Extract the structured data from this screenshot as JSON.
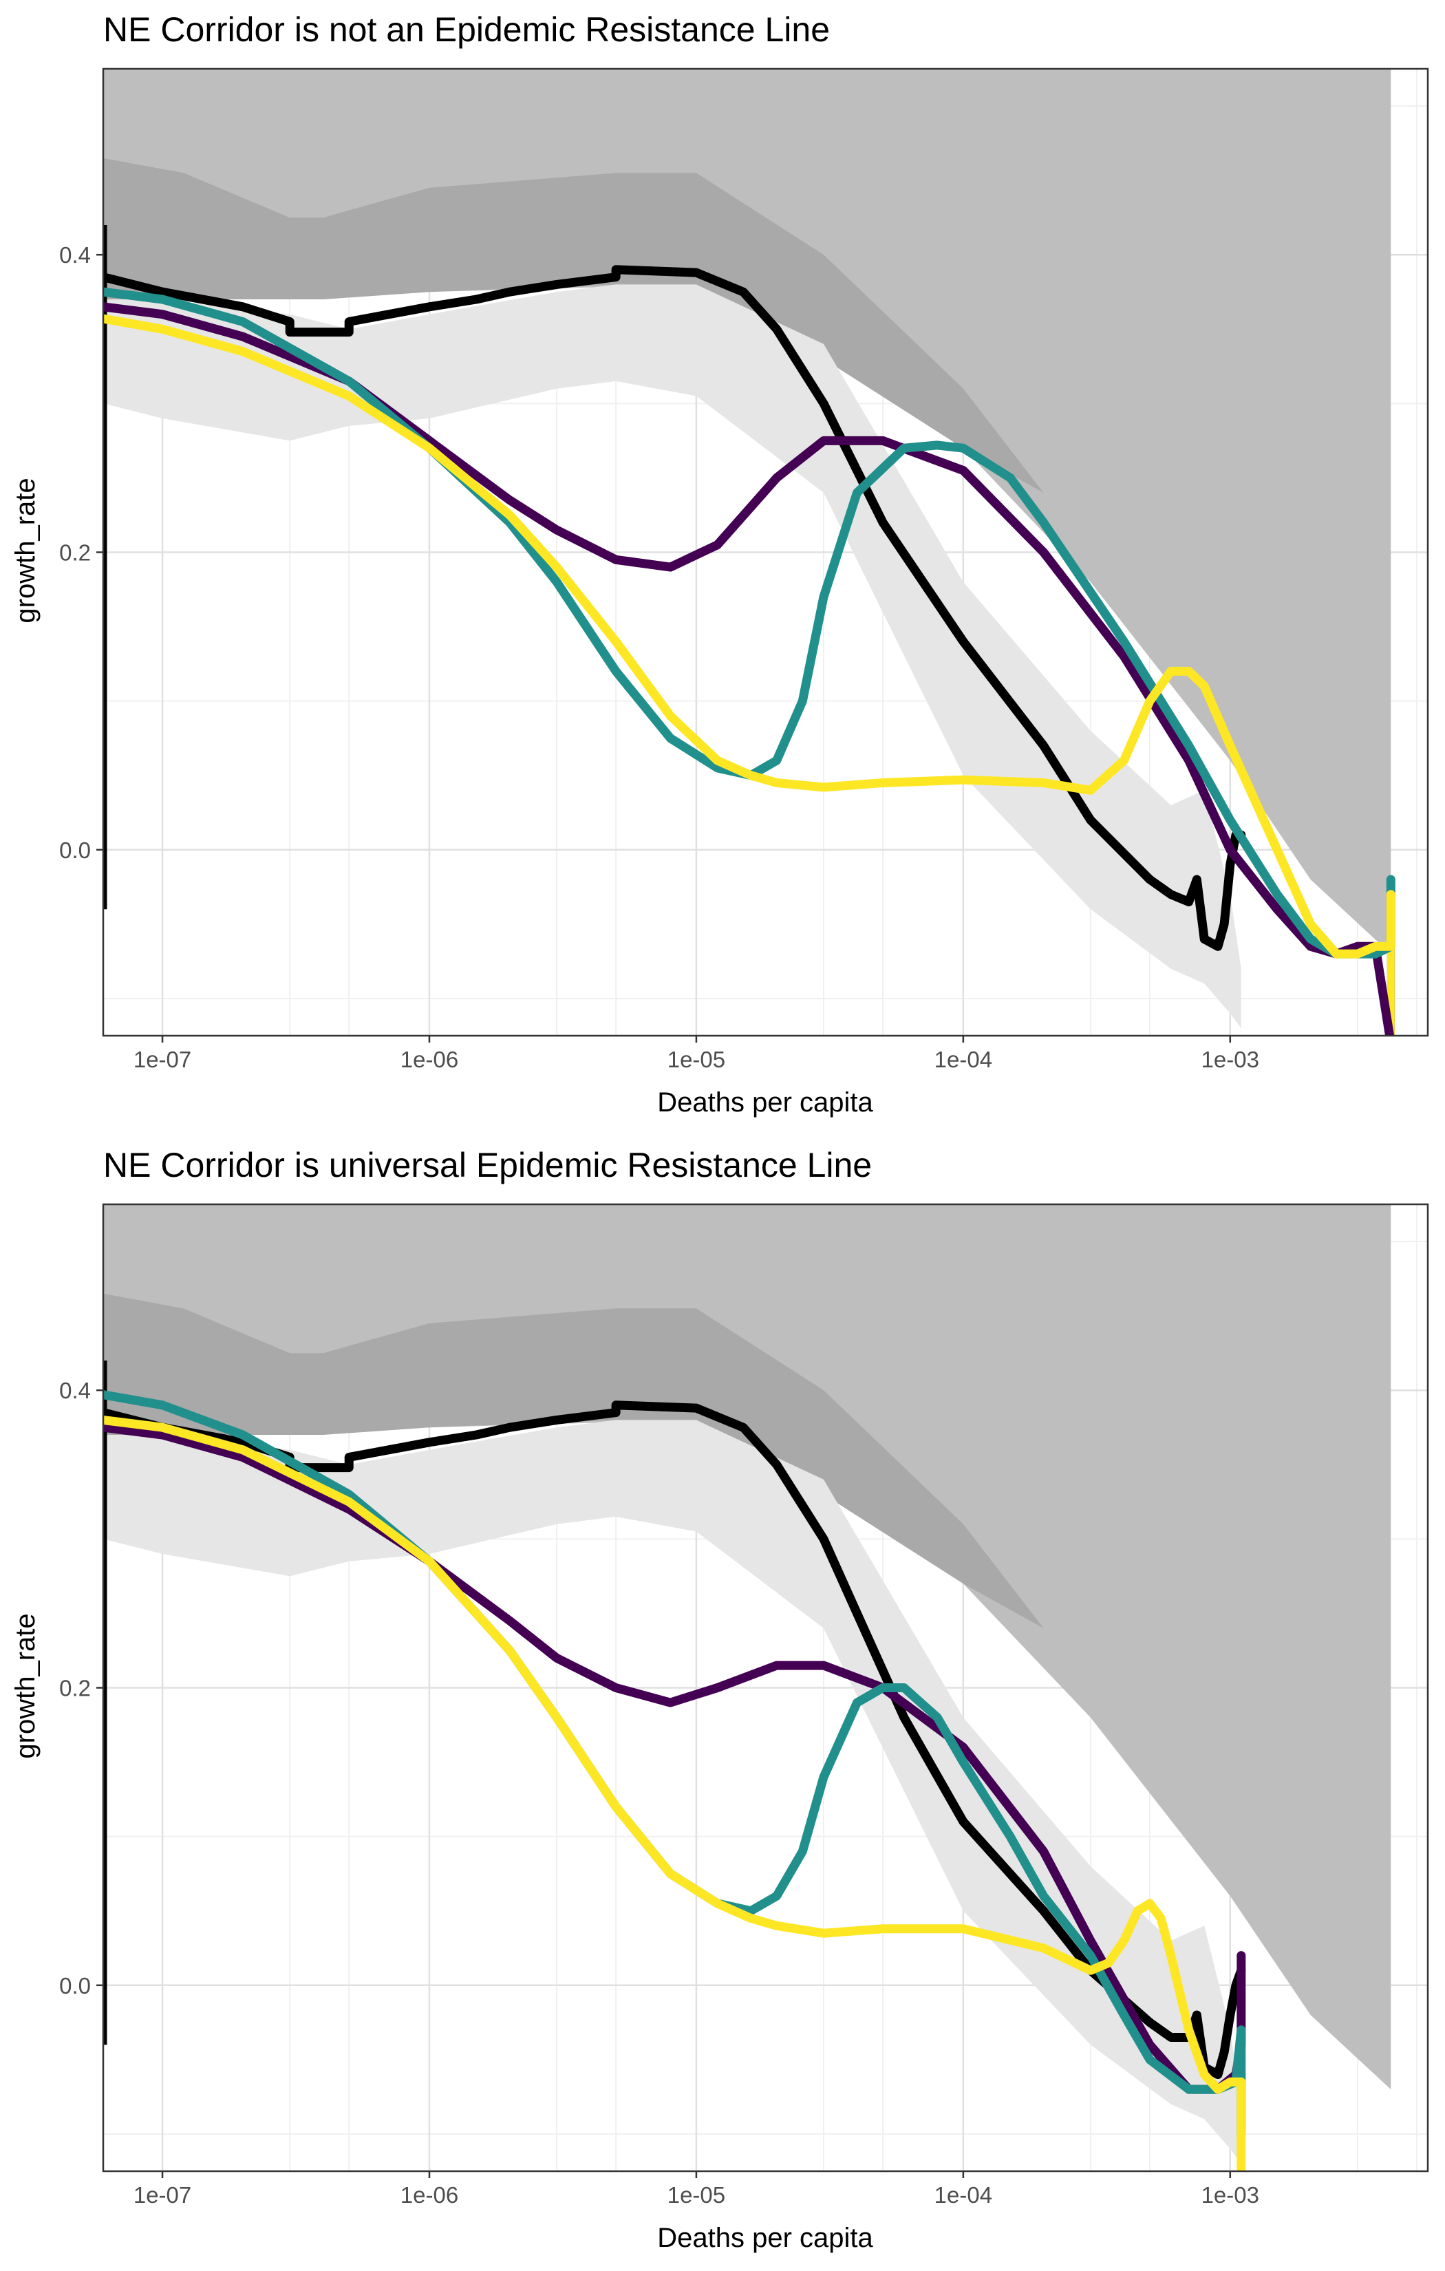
{
  "chart_data": [
    {
      "type": "line",
      "title": "NE Corridor is not an Epidemic Resistance Line",
      "xlabel": "Deaths per capita",
      "ylabel": "growth_rate",
      "x_scale": "log10",
      "xlim": [
        6e-08,
        0.0055
      ],
      "ylim": [
        -0.125,
        0.525
      ],
      "x_ticks": [
        {
          "value": 1e-07,
          "label": "1e-07"
        },
        {
          "value": 1e-06,
          "label": "1e-06"
        },
        {
          "value": 1e-05,
          "label": "1e-05"
        },
        {
          "value": 0.0001,
          "label": "1e-04"
        },
        {
          "value": 0.001,
          "label": "1e-03"
        }
      ],
      "y_ticks": [
        {
          "value": 0.0,
          "label": "0.0"
        },
        {
          "value": 0.2,
          "label": "0.2"
        },
        {
          "value": 0.4,
          "label": "0.4"
        }
      ],
      "grid": true,
      "legend": "none",
      "bands": [
        {
          "color": "#bebebe",
          "x": [
            6e-08,
            0.004
          ],
          "upper": [
            0.525,
            0.525
          ],
          "lower": [
            0.525,
            0.525
          ]
        },
        {
          "color": "#bebebe",
          "x": [
            6e-08,
            1e-07,
            1e-06,
            1e-05,
            3e-05,
            0.0001,
            0.0003,
            0.001,
            0.002,
            0.004
          ],
          "upper": [
            0.525,
            0.525,
            0.525,
            0.525,
            0.525,
            0.525,
            0.525,
            0.525,
            0.525,
            0.525
          ],
          "lower": [
            0.37,
            0.37,
            0.375,
            0.38,
            0.33,
            0.27,
            0.18,
            0.06,
            -0.02,
            -0.07
          ]
        },
        {
          "color": "#a9a9a9",
          "x": [
            6e-08,
            1.2e-07,
            3e-07,
            4e-07,
            1e-06,
            5e-06,
            1e-05,
            3e-05,
            0.0001,
            0.0002
          ],
          "upper": [
            0.465,
            0.455,
            0.425,
            0.425,
            0.445,
            0.455,
            0.455,
            0.4,
            0.31,
            0.24
          ],
          "lower": [
            0.37,
            0.37,
            0.37,
            0.37,
            0.375,
            0.38,
            0.38,
            0.33,
            0.27,
            0.24
          ]
        },
        {
          "color": "#e6e6e6",
          "x": [
            6e-08,
            1e-07,
            3e-07,
            5e-07,
            1e-06,
            3e-06,
            5e-06,
            1e-05,
            3e-05,
            0.0001,
            0.0003,
            0.0006,
            0.0008,
            0.001,
            0.0011
          ],
          "upper": [
            0.37,
            0.37,
            0.36,
            0.35,
            0.36,
            0.375,
            0.38,
            0.38,
            0.34,
            0.18,
            0.08,
            0.03,
            0.04,
            -0.03,
            -0.08
          ],
          "lower": [
            0.3,
            0.29,
            0.275,
            0.285,
            0.29,
            0.31,
            0.315,
            0.305,
            0.24,
            0.05,
            -0.04,
            -0.08,
            -0.09,
            -0.11,
            -0.12
          ]
        }
      ],
      "series": [
        {
          "color": "#000000",
          "x": [
            6e-08,
            1e-07,
            2e-07,
            3e-07,
            3e-07,
            5e-07,
            5e-07,
            1e-06,
            1.5e-06,
            2e-06,
            3e-06,
            5e-06,
            5e-06,
            1e-05,
            1.5e-05,
            2e-05,
            3e-05,
            5e-05,
            0.0001,
            0.0002,
            0.0003,
            0.0005,
            0.0006,
            0.0007,
            0.00075,
            0.0008,
            0.0009,
            0.00095,
            0.001,
            0.00105,
            0.0011
          ],
          "y": [
            0.385,
            0.375,
            0.365,
            0.355,
            0.348,
            0.348,
            0.355,
            0.365,
            0.37,
            0.375,
            0.38,
            0.385,
            0.39,
            0.388,
            0.375,
            0.35,
            0.3,
            0.22,
            0.14,
            0.07,
            0.02,
            -0.02,
            -0.03,
            -0.035,
            -0.02,
            -0.06,
            -0.065,
            -0.05,
            -0.01,
            0.01,
            0.01
          ]
        },
        {
          "color": "#440154",
          "x": [
            6e-08,
            1e-07,
            2e-07,
            5e-07,
            1e-06,
            2e-06,
            3e-06,
            5e-06,
            8e-06,
            1.2e-05,
            2e-05,
            3e-05,
            5e-05,
            0.0001,
            0.0002,
            0.0004,
            0.0007,
            0.001,
            0.0015,
            0.002,
            0.0025,
            0.003,
            0.0035,
            0.004
          ],
          "y": [
            0.365,
            0.36,
            0.345,
            0.315,
            0.275,
            0.235,
            0.215,
            0.195,
            0.19,
            0.205,
            0.25,
            0.275,
            0.275,
            0.255,
            0.2,
            0.13,
            0.06,
            0.0,
            -0.04,
            -0.065,
            -0.07,
            -0.065,
            -0.065,
            -0.13
          ]
        },
        {
          "color": "#21908c",
          "x": [
            6e-08,
            1e-07,
            2e-07,
            5e-07,
            1e-06,
            2e-06,
            3e-06,
            5e-06,
            8e-06,
            1.2e-05,
            1.6e-05,
            2e-05,
            2.5e-05,
            3e-05,
            4e-05,
            6e-05,
            8e-05,
            0.0001,
            0.00015,
            0.0002,
            0.0004,
            0.0007,
            0.001,
            0.0015,
            0.002,
            0.0025,
            0.003,
            0.0035,
            0.004,
            0.004
          ],
          "y": [
            0.375,
            0.37,
            0.355,
            0.315,
            0.27,
            0.22,
            0.18,
            0.12,
            0.075,
            0.055,
            0.05,
            0.06,
            0.1,
            0.17,
            0.24,
            0.27,
            0.272,
            0.27,
            0.25,
            0.22,
            0.14,
            0.07,
            0.02,
            -0.03,
            -0.06,
            -0.07,
            -0.07,
            -0.07,
            -0.065,
            -0.02
          ]
        },
        {
          "color": "#fde725",
          "x": [
            6e-08,
            1e-07,
            2e-07,
            5e-07,
            1e-06,
            2e-06,
            3e-06,
            5e-06,
            8e-06,
            1.2e-05,
            1.6e-05,
            2e-05,
            3e-05,
            5e-05,
            0.0001,
            0.0002,
            0.0003,
            0.0004,
            0.0005,
            0.0006,
            0.0007,
            0.0008,
            0.001,
            0.0015,
            0.002,
            0.0025,
            0.003,
            0.0035,
            0.004,
            0.004
          ],
          "y": [
            0.357,
            0.35,
            0.335,
            0.305,
            0.27,
            0.225,
            0.19,
            0.14,
            0.09,
            0.06,
            0.05,
            0.045,
            0.042,
            0.045,
            0.047,
            0.045,
            0.04,
            0.06,
            0.1,
            0.12,
            0.12,
            0.11,
            0.07,
            0.0,
            -0.05,
            -0.07,
            -0.07,
            -0.065,
            -0.065,
            -0.03
          ]
        }
      ],
      "vertical_segments": [
        {
          "color": "#000000",
          "x": 6e-08,
          "y0": -0.04,
          "y1": 0.42
        },
        {
          "color": "#440154",
          "x": 0.004,
          "y0": -0.125,
          "y1": -0.065
        },
        {
          "color": "#21908c",
          "x": 0.004,
          "y0": -0.065,
          "y1": -0.02
        },
        {
          "color": "#fde725",
          "x": 0.004,
          "y0": -0.125,
          "y1": -0.03
        }
      ]
    },
    {
      "type": "line",
      "title": "NE Corridor is universal Epidemic Resistance Line",
      "xlabel": "Deaths per capita",
      "ylabel": "growth_rate",
      "x_scale": "log10",
      "xlim": [
        6e-08,
        0.0055
      ],
      "ylim": [
        -0.125,
        0.525
      ],
      "x_ticks": [
        {
          "value": 1e-07,
          "label": "1e-07"
        },
        {
          "value": 1e-06,
          "label": "1e-06"
        },
        {
          "value": 1e-05,
          "label": "1e-05"
        },
        {
          "value": 0.0001,
          "label": "1e-04"
        },
        {
          "value": 0.001,
          "label": "1e-03"
        }
      ],
      "y_ticks": [
        {
          "value": 0.0,
          "label": "0.0"
        },
        {
          "value": 0.2,
          "label": "0.2"
        },
        {
          "value": 0.4,
          "label": "0.4"
        }
      ],
      "grid": true,
      "legend": "none",
      "bands": [
        {
          "color": "#bebebe",
          "x": [
            6e-08,
            1e-07,
            1e-06,
            1e-05,
            3e-05,
            0.0001,
            0.0003,
            0.001,
            0.002,
            0.004
          ],
          "upper": [
            0.525,
            0.525,
            0.525,
            0.525,
            0.525,
            0.525,
            0.525,
            0.525,
            0.525,
            0.525
          ],
          "lower": [
            0.37,
            0.37,
            0.375,
            0.38,
            0.33,
            0.27,
            0.18,
            0.06,
            -0.02,
            -0.07
          ]
        },
        {
          "color": "#a9a9a9",
          "x": [
            6e-08,
            1.2e-07,
            3e-07,
            4e-07,
            1e-06,
            5e-06,
            1e-05,
            3e-05,
            0.0001,
            0.0002
          ],
          "upper": [
            0.465,
            0.455,
            0.425,
            0.425,
            0.445,
            0.455,
            0.455,
            0.4,
            0.31,
            0.24
          ],
          "lower": [
            0.37,
            0.37,
            0.37,
            0.37,
            0.375,
            0.38,
            0.38,
            0.33,
            0.27,
            0.24
          ]
        },
        {
          "color": "#e6e6e6",
          "x": [
            6e-08,
            1e-07,
            3e-07,
            5e-07,
            1e-06,
            3e-06,
            5e-06,
            1e-05,
            3e-05,
            0.0001,
            0.0003,
            0.0006,
            0.0008,
            0.001,
            0.0011
          ],
          "upper": [
            0.37,
            0.37,
            0.36,
            0.35,
            0.36,
            0.375,
            0.38,
            0.38,
            0.34,
            0.18,
            0.08,
            0.03,
            0.04,
            -0.03,
            -0.08
          ],
          "lower": [
            0.3,
            0.29,
            0.275,
            0.285,
            0.29,
            0.31,
            0.315,
            0.305,
            0.24,
            0.05,
            -0.04,
            -0.08,
            -0.09,
            -0.11,
            -0.12
          ]
        }
      ],
      "series": [
        {
          "color": "#000000",
          "x": [
            6e-08,
            1e-07,
            2e-07,
            3e-07,
            3e-07,
            5e-07,
            5e-07,
            1e-06,
            1.5e-06,
            2e-06,
            3e-06,
            5e-06,
            5e-06,
            1e-05,
            1.5e-05,
            2e-05,
            3e-05,
            4e-05,
            6e-05,
            0.0001,
            0.0002,
            0.0003,
            0.0005,
            0.0006,
            0.0007,
            0.00075,
            0.0008,
            0.0009,
            0.00095,
            0.001,
            0.00105,
            0.0011
          ],
          "y": [
            0.385,
            0.375,
            0.365,
            0.355,
            0.348,
            0.348,
            0.355,
            0.365,
            0.37,
            0.375,
            0.38,
            0.385,
            0.39,
            0.388,
            0.375,
            0.35,
            0.3,
            0.25,
            0.18,
            0.11,
            0.05,
            0.01,
            -0.025,
            -0.035,
            -0.035,
            -0.02,
            -0.055,
            -0.06,
            -0.045,
            -0.02,
            0.0,
            0.01
          ]
        },
        {
          "color": "#440154",
          "x": [
            6e-08,
            1e-07,
            2e-07,
            5e-07,
            1e-06,
            2e-06,
            3e-06,
            5e-06,
            8e-06,
            1.2e-05,
            2e-05,
            3e-05,
            5e-05,
            0.0001,
            0.0002,
            0.0003,
            0.0005,
            0.0007,
            0.0009,
            0.00105,
            0.0011,
            0.0011
          ],
          "y": [
            0.375,
            0.37,
            0.355,
            0.32,
            0.285,
            0.245,
            0.22,
            0.2,
            0.19,
            0.2,
            0.215,
            0.215,
            0.2,
            0.16,
            0.09,
            0.03,
            -0.04,
            -0.07,
            -0.07,
            -0.06,
            -0.04,
            0.02
          ]
        },
        {
          "color": "#21908c",
          "x": [
            6e-08,
            1e-07,
            2e-07,
            5e-07,
            1e-06,
            2e-06,
            3e-06,
            5e-06,
            8e-06,
            1.2e-05,
            1.6e-05,
            2e-05,
            2.5e-05,
            3e-05,
            4e-05,
            5e-05,
            6e-05,
            8e-05,
            0.0001,
            0.00015,
            0.0002,
            0.0003,
            0.0004,
            0.0005,
            0.0007,
            0.0009,
            0.00105,
            0.0011,
            0.0011
          ],
          "y": [
            0.397,
            0.39,
            0.37,
            0.33,
            0.285,
            0.225,
            0.18,
            0.12,
            0.075,
            0.055,
            0.05,
            0.06,
            0.09,
            0.14,
            0.19,
            0.2,
            0.2,
            0.18,
            0.15,
            0.1,
            0.06,
            0.02,
            -0.02,
            -0.05,
            -0.07,
            -0.07,
            -0.065,
            -0.03,
            -0.1
          ]
        },
        {
          "color": "#fde725",
          "x": [
            6e-08,
            1e-07,
            2e-07,
            5e-07,
            1e-06,
            2e-06,
            3e-06,
            5e-06,
            8e-06,
            1.2e-05,
            1.6e-05,
            2e-05,
            3e-05,
            5e-05,
            0.0001,
            0.0002,
            0.0003,
            0.00035,
            0.0004,
            0.00045,
            0.0005,
            0.00055,
            0.0006,
            0.0007,
            0.0008,
            0.0009,
            0.001,
            0.0011,
            0.0011
          ],
          "y": [
            0.38,
            0.375,
            0.36,
            0.325,
            0.285,
            0.225,
            0.18,
            0.12,
            0.075,
            0.055,
            0.045,
            0.04,
            0.035,
            0.038,
            0.038,
            0.025,
            0.01,
            0.015,
            0.03,
            0.05,
            0.055,
            0.045,
            0.02,
            -0.03,
            -0.06,
            -0.07,
            -0.065,
            -0.065,
            -0.125
          ]
        }
      ],
      "vertical_segments": [
        {
          "color": "#000000",
          "x": 6e-08,
          "y0": -0.04,
          "y1": 0.42
        }
      ]
    }
  ]
}
